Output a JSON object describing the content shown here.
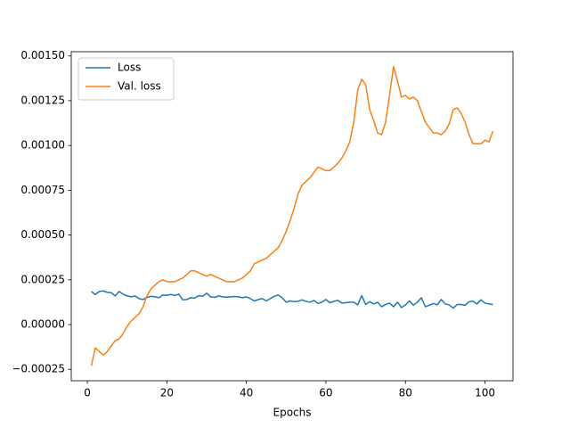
{
  "chart_data": {
    "type": "line",
    "xlabel": "Epochs",
    "x": [
      1,
      2,
      3,
      4,
      5,
      6,
      7,
      8,
      9,
      10,
      11,
      12,
      13,
      14,
      15,
      16,
      17,
      18,
      19,
      20,
      21,
      22,
      23,
      24,
      25,
      26,
      27,
      28,
      29,
      30,
      31,
      32,
      33,
      34,
      35,
      36,
      37,
      38,
      39,
      40,
      41,
      42,
      43,
      44,
      45,
      46,
      47,
      48,
      49,
      50,
      51,
      52,
      53,
      54,
      55,
      56,
      57,
      58,
      59,
      60,
      61,
      62,
      63,
      64,
      65,
      66,
      67,
      68,
      69,
      70,
      71,
      72,
      73,
      74,
      75,
      76,
      77,
      78,
      79,
      80,
      81,
      82,
      83,
      84,
      85,
      86,
      87,
      88,
      89,
      90,
      91,
      92,
      93,
      94,
      95,
      96,
      97,
      98,
      99,
      100,
      101,
      102
    ],
    "series": [
      {
        "name": "Loss",
        "color": "#1f77b4",
        "values": [
          0.000185,
          0.000168,
          0.000185,
          0.000188,
          0.00018,
          0.000178,
          0.00016,
          0.000185,
          0.00017,
          0.00016,
          0.000155,
          0.00016,
          0.000145,
          0.00014,
          0.000152,
          0.000158,
          0.000155,
          0.00015,
          0.000165,
          0.000163,
          0.000168,
          0.000163,
          0.00017,
          0.000138,
          0.00014,
          0.00015,
          0.000148,
          0.000162,
          0.000158,
          0.000175,
          0.000155,
          0.000152,
          0.00016,
          0.000155,
          0.000153,
          0.000155,
          0.000157,
          0.000155,
          0.00015,
          0.000155,
          0.000145,
          0.000132,
          0.00014,
          0.000145,
          0.000132,
          0.000145,
          0.000158,
          0.000165,
          0.00015,
          0.000125,
          0.000132,
          0.000128,
          0.00013,
          0.000138,
          0.00013,
          0.000125,
          0.000135,
          0.000118,
          0.000125,
          0.00014,
          0.000122,
          0.00013,
          0.000135,
          0.00012,
          0.000122,
          0.000125,
          0.000125,
          0.00011,
          0.000162,
          0.000112,
          0.000128,
          0.000115,
          0.000125,
          0.0001,
          0.000112,
          0.00012,
          0.0001,
          0.000125,
          9.5e-05,
          0.00011,
          0.000132,
          0.000108,
          0.000125,
          0.00015,
          0.0001,
          0.000108,
          0.000118,
          0.00011,
          0.00014,
          0.000115,
          0.00011,
          9.2e-05,
          0.000112,
          0.000112,
          0.000108,
          0.000128,
          0.00013,
          0.000115,
          0.000138,
          0.00012,
          0.000115,
          0.000112
        ]
      },
      {
        "name": "Val. loss",
        "color": "#ff7f0e",
        "values": [
          -0.00023,
          -0.00013,
          -0.00015,
          -0.00017,
          -0.00015,
          -0.00012,
          -9e-05,
          -8e-05,
          -5e-05,
          -1e-05,
          2e-05,
          4e-05,
          6e-05,
          0.0001,
          0.00016,
          0.0002,
          0.00022,
          0.00024,
          0.00025,
          0.00024,
          0.00024,
          0.00024,
          0.00025,
          0.00026,
          0.00028,
          0.0003,
          0.0003,
          0.00029,
          0.00028,
          0.00027,
          0.00028,
          0.00027,
          0.00026,
          0.00025,
          0.00024,
          0.00024,
          0.00024,
          0.00025,
          0.00026,
          0.00028,
          0.0003,
          0.00034,
          0.00035,
          0.00036,
          0.00037,
          0.00039,
          0.00041,
          0.00043,
          0.00047,
          0.00052,
          0.00058,
          0.00065,
          0.00073,
          0.00078,
          0.0008,
          0.00082,
          0.00085,
          0.00088,
          0.00087,
          0.00086,
          0.00086,
          0.00088,
          0.0009,
          0.00093,
          0.00097,
          0.00102,
          0.00113,
          0.00131,
          0.00137,
          0.00134,
          0.0012,
          0.00114,
          0.00107,
          0.00106,
          0.00113,
          0.00128,
          0.00144,
          0.00136,
          0.00127,
          0.00128,
          0.00126,
          0.00127,
          0.00125,
          0.00119,
          0.00113,
          0.0011,
          0.00107,
          0.00107,
          0.00106,
          0.00108,
          0.00112,
          0.0012,
          0.00121,
          0.00118,
          0.00113,
          0.00106,
          0.00101,
          0.00101,
          0.00101,
          0.00103,
          0.00102,
          0.00108
        ]
      }
    ],
    "xlim": [
      -4.05,
      107.05
    ],
    "xticks": [
      0,
      20,
      40,
      60,
      80,
      100
    ],
    "ylim": [
      -0.0003135,
      0.0015235
    ],
    "yticks": [
      {
        "value": -0.00025,
        "label": "−0.00025"
      },
      {
        "value": 0,
        "label": "0.00000"
      },
      {
        "value": 0.00025,
        "label": "0.00025"
      },
      {
        "value": 0.0005,
        "label": "0.00050"
      },
      {
        "value": 0.00075,
        "label": "0.00075"
      },
      {
        "value": 0.001,
        "label": "0.00100"
      },
      {
        "value": 0.00125,
        "label": "0.00125"
      },
      {
        "value": 0.0015,
        "label": "0.00150"
      }
    ],
    "legend": "upper left"
  }
}
